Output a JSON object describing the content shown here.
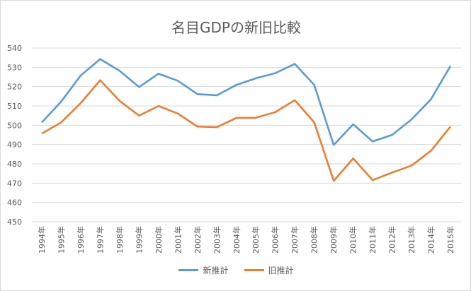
{
  "chart_data": {
    "type": "line",
    "title": "名目GDPの新旧比較",
    "xlabel": "",
    "ylabel": "",
    "ylim": [
      450,
      540
    ],
    "yticks": [
      450,
      460,
      470,
      480,
      490,
      500,
      510,
      520,
      530,
      540
    ],
    "categories": [
      "1994年",
      "1995年",
      "1996年",
      "1997年",
      "1998年",
      "1999年",
      "2000年",
      "2001年",
      "2002年",
      "2003年",
      "2004年",
      "2005年",
      "2006年",
      "2007年",
      "2008年",
      "2009年",
      "2010年",
      "2011年",
      "2012年",
      "2013年",
      "2014年",
      "2015年"
    ],
    "series": [
      {
        "name": "新推計",
        "color": "#5B9BD5",
        "values": [
          501.5,
          512.3,
          525.8,
          534.3,
          528.2,
          519.8,
          526.7,
          523.0,
          516.1,
          515.5,
          520.9,
          524.3,
          527.0,
          531.8,
          520.9,
          489.8,
          500.5,
          491.6,
          495.0,
          503.0,
          513.5,
          530.7
        ]
      },
      {
        "name": "旧推計",
        "color": "#ED7D31",
        "values": [
          495.7,
          501.5,
          511.5,
          523.3,
          512.6,
          505.0,
          510.0,
          506.0,
          499.3,
          499.0,
          503.8,
          503.9,
          506.8,
          513.0,
          501.5,
          471.2,
          482.8,
          471.6,
          475.5,
          479.1,
          486.8,
          499.3
        ]
      }
    ],
    "grid": true,
    "legend": "bottom"
  }
}
